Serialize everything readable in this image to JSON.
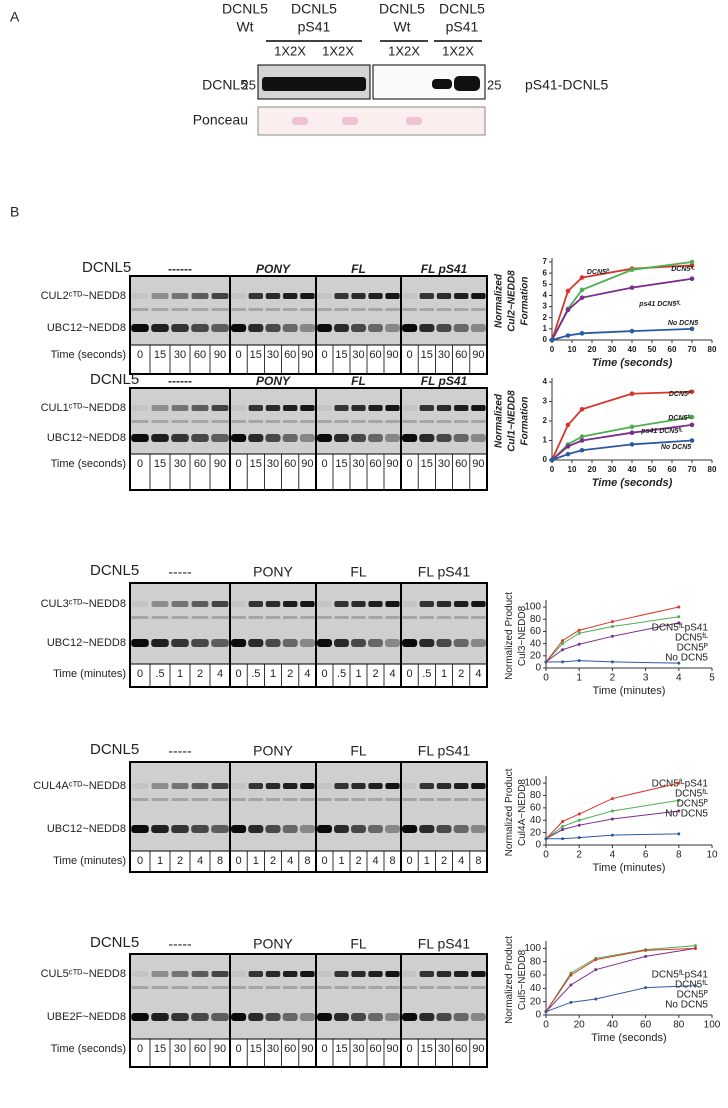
{
  "panel_a": {
    "label": "A",
    "lane_groups": [
      {
        "line1": "DCNL5",
        "line2": "Wt",
        "doses": "1X2X"
      },
      {
        "line1": "DCNL5",
        "line2": "pS41",
        "doses": "1X2X"
      },
      {
        "line1": "DCNL5",
        "line2": "Wt",
        "doses": "1X2X"
      },
      {
        "line1": "DCNL5",
        "line2": "pS41",
        "doses": "1X2X"
      }
    ],
    "left_label": "DCNL5",
    "right_label": "pS41-DCNL5",
    "marker_left": "25",
    "marker_right": "25",
    "stain": "Ponceau"
  },
  "panel_b": {
    "label": "B",
    "gels": [
      {
        "protein": "DCNL5",
        "groups": [
          "------",
          "PONY",
          "FL",
          "FL pS41"
        ],
        "upper_band": "CUL2ᶜᵀᴰ~NEDD8",
        "lower_band": "UBC12~NEDD8",
        "time_label": "Time (seconds)",
        "lanes": [
          "0",
          "15",
          "30",
          "60",
          "90"
        ]
      },
      {
        "protein": "DCNL5",
        "groups": [
          "------",
          "PONY",
          "FL",
          "FL pS41"
        ],
        "upper_band": "CUL1ᶜᵀᴰ~NEDD8",
        "lower_band": "UBC12~NEDD8",
        "time_label": "Time (seconds)",
        "lanes": [
          "0",
          "15",
          "30",
          "60",
          "90"
        ]
      },
      {
        "protein": "DCNL5",
        "groups": [
          "-----",
          "PONY",
          "FL",
          "FL pS41"
        ],
        "upper_band": "CUL3ᶜᵀᴰ~NEDD8",
        "lower_band": "UBC12~NEDD8",
        "time_label": "Time (minutes)",
        "lanes": [
          "0",
          ".5",
          "1",
          "2",
          "4"
        ]
      },
      {
        "protein": "DCNL5",
        "groups": [
          "-----",
          "PONY",
          "FL",
          "FL pS41"
        ],
        "upper_band": "CUL4Aᶜᵀᴰ~NEDD8",
        "lower_band": "UBC12~NEDD8",
        "time_label": "Time (minutes)",
        "lanes": [
          "0",
          "1",
          "2",
          "4",
          "8"
        ]
      },
      {
        "protein": "DCNL5",
        "groups": [
          "-----",
          "PONY",
          "FL",
          "FL pS41"
        ],
        "upper_band": "CUL5ᶜᵀᴰ~NEDD8",
        "lower_band": "UBE2F~NEDD8",
        "time_label": "Time (seconds)",
        "lanes": [
          "0",
          "15",
          "30",
          "60",
          "90"
        ]
      }
    ]
  },
  "chart_data": [
    {
      "type": "line",
      "y_label": [
        "Normalized",
        "Cul2~NEDD8",
        "Formation"
      ],
      "x_label": "Time (seconds)",
      "legend": "inline",
      "x": [
        0,
        8,
        15,
        40,
        70
      ],
      "xlim": [
        0,
        80
      ],
      "xticks": [
        0,
        10,
        20,
        30,
        40,
        50,
        60,
        70,
        80
      ],
      "ylim": [
        0,
        7
      ],
      "yticks": [
        0,
        1,
        2,
        3,
        4,
        5,
        6,
        7
      ],
      "series": [
        {
          "name": "DCN5ᴾ",
          "color": "#d9352a",
          "values": [
            0,
            4.4,
            5.6,
            6.4,
            6.7
          ]
        },
        {
          "name": "DCN5ᶠᴸ",
          "color": "#4caf50",
          "values": [
            0,
            2.8,
            4.5,
            6.3,
            7.0
          ]
        },
        {
          "name": "ps41 DCN5ᶠᴸ",
          "color": "#7b2d8e",
          "values": [
            0,
            2.7,
            3.8,
            4.7,
            5.5
          ]
        },
        {
          "name": "No DCN5",
          "color": "#2c5aa0",
          "values": [
            0,
            0.4,
            0.6,
            0.8,
            1.0
          ]
        }
      ]
    },
    {
      "type": "line",
      "y_label": [
        "Normalized",
        "Cul1~NEDD8",
        "Formation"
      ],
      "x_label": "Time (seconds)",
      "legend": "inline",
      "x": [
        0,
        8,
        15,
        40,
        70
      ],
      "xlim": [
        0,
        80
      ],
      "xticks": [
        0,
        10,
        20,
        30,
        40,
        50,
        60,
        70,
        80
      ],
      "ylim": [
        0,
        4
      ],
      "yticks": [
        0,
        1,
        2,
        3,
        4
      ],
      "series": [
        {
          "name": "DCN5ᴾ",
          "color": "#d9352a",
          "values": [
            0,
            1.8,
            2.6,
            3.4,
            3.5
          ]
        },
        {
          "name": "DCN5ᶠᴸ",
          "color": "#4caf50",
          "values": [
            0,
            0.8,
            1.2,
            1.7,
            2.2
          ]
        },
        {
          "name": "ps41 DCN5ᶠᴸ",
          "color": "#7b2d8e",
          "values": [
            0,
            0.7,
            1.0,
            1.4,
            1.8
          ]
        },
        {
          "name": "No DCN5",
          "color": "#2c5aa0",
          "values": [
            0,
            0.3,
            0.5,
            0.8,
            1.0
          ]
        }
      ]
    },
    {
      "type": "line",
      "y_label": [
        "Normalized Product",
        "Cul3~NEDD8"
      ],
      "x_label": "Time (minutes)",
      "legend": "lower right",
      "x": [
        0,
        0.5,
        1,
        2,
        4
      ],
      "xlim": [
        0,
        5
      ],
      "xticks": [
        0,
        1,
        2,
        3,
        4,
        5
      ],
      "ylim": [
        0,
        105
      ],
      "yticks": [
        0,
        20,
        40,
        60,
        80,
        100
      ],
      "series": [
        {
          "name": "DCN5ᶠᴸpS41",
          "color": "#7b2d8e",
          "values": [
            10,
            30,
            39,
            52,
            74
          ]
        },
        {
          "name": "DCN5ᶠᴸ",
          "color": "#4caf50",
          "values": [
            10,
            40,
            57,
            68,
            84
          ]
        },
        {
          "name": "DCN5ᴾ",
          "color": "#d9352a",
          "values": [
            10,
            45,
            62,
            76,
            100
          ]
        },
        {
          "name": "No DCN5",
          "color": "#2c5aa0",
          "values": [
            10,
            10,
            12,
            10,
            8
          ]
        }
      ]
    },
    {
      "type": "line",
      "y_label": [
        "Normalized Product",
        "Cul4A~NEDD8"
      ],
      "x_label": "Time (minutes)",
      "legend": "upper right",
      "x": [
        0,
        1,
        2,
        4,
        8
      ],
      "xlim": [
        0,
        10
      ],
      "xticks": [
        0,
        2,
        4,
        6,
        8,
        10
      ],
      "ylim": [
        0,
        105
      ],
      "yticks": [
        0,
        20,
        40,
        60,
        80,
        100
      ],
      "series": [
        {
          "name": "DCN5ᶠᴸpS41",
          "color": "#7b2d8e",
          "values": [
            10,
            25,
            32,
            42,
            55
          ]
        },
        {
          "name": "DCN5ᶠᴸ",
          "color": "#4caf50",
          "values": [
            10,
            30,
            40,
            55,
            72
          ]
        },
        {
          "name": "DCN5ᴾ",
          "color": "#d9352a",
          "values": [
            10,
            38,
            50,
            75,
            100
          ]
        },
        {
          "name": "No DCN5",
          "color": "#2c5aa0",
          "values": [
            10,
            10,
            12,
            16,
            18
          ]
        }
      ]
    },
    {
      "type": "line",
      "y_label": [
        "Normalized Product",
        "Cul5~NEDD8"
      ],
      "x_label": "Time (seconds)",
      "legend": "lower right",
      "x": [
        0,
        15,
        30,
        60,
        90
      ],
      "xlim": [
        0,
        100
      ],
      "xticks": [
        0,
        20,
        40,
        60,
        80,
        100
      ],
      "ylim": [
        0,
        105
      ],
      "yticks": [
        0,
        20,
        40,
        60,
        80,
        100
      ],
      "series": [
        {
          "name": "DCN5ᶠᴸpS41",
          "color": "#7b2d8e",
          "values": [
            5,
            45,
            68,
            88,
            100
          ]
        },
        {
          "name": "DCN5ᶠᴸ",
          "color": "#4caf50",
          "values": [
            5,
            63,
            85,
            98,
            104
          ]
        },
        {
          "name": "DCN5ᴾ",
          "color": "#d9352a",
          "values": [
            5,
            60,
            83,
            97,
            100
          ]
        },
        {
          "name": "No DCN5",
          "color": "#2c5aa0",
          "values": [
            5,
            19,
            24,
            41,
            44
          ]
        }
      ]
    }
  ]
}
